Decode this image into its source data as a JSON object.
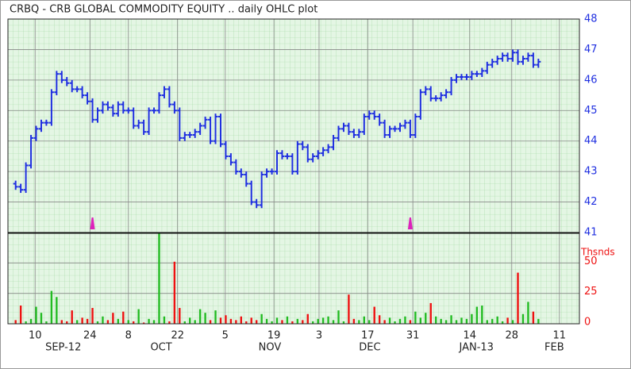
{
  "chart_data": {
    "type": "ohlc",
    "title": "CRBQ - CRB GLOBAL COMMODITY EQUITY .. daily OHLC plot",
    "x": [
      1,
      2,
      3,
      4,
      5,
      6,
      7,
      8,
      9,
      10,
      11,
      12,
      13,
      14,
      15,
      16,
      17,
      18,
      19,
      20,
      21,
      22,
      23,
      24,
      25,
      26,
      27,
      28,
      29,
      30,
      31,
      32,
      33,
      34,
      35,
      36,
      37,
      38,
      39,
      40,
      41,
      42,
      43,
      44,
      45,
      46,
      47,
      48,
      49,
      50,
      51,
      52,
      53,
      54,
      55,
      56,
      57,
      58,
      59,
      60,
      61,
      62,
      63,
      64,
      65,
      66,
      67,
      68,
      69,
      70,
      71,
      72,
      73,
      74,
      75,
      76,
      77,
      78,
      79,
      80,
      81,
      82,
      83,
      84,
      85,
      86,
      87,
      88,
      89,
      90,
      91,
      92,
      93,
      94,
      95,
      96,
      97,
      98,
      99,
      100,
      101,
      102,
      103
    ],
    "open": [
      42.6,
      42.5,
      42.4,
      43.2,
      44.1,
      44.4,
      44.6,
      44.6,
      45.6,
      46.2,
      46.0,
      45.9,
      45.7,
      45.7,
      45.5,
      45.3,
      44.7,
      45.0,
      45.2,
      45.1,
      44.9,
      45.2,
      45.0,
      45.0,
      44.5,
      44.6,
      44.3,
      45.0,
      45.0,
      45.5,
      45.7,
      45.2,
      45.0,
      44.1,
      44.2,
      44.2,
      44.3,
      44.5,
      44.7,
      44.0,
      44.8,
      43.9,
      43.5,
      43.3,
      43.0,
      42.9,
      42.6,
      42.0,
      41.9,
      42.9,
      43.0,
      43.0,
      43.6,
      43.5,
      43.5,
      43.0,
      43.9,
      43.8,
      43.4,
      43.5,
      43.6,
      43.7,
      43.8,
      44.1,
      44.4,
      44.5,
      44.3,
      44.2,
      44.3,
      44.8,
      44.9,
      44.8,
      44.6,
      44.2,
      44.4,
      44.4,
      44.5,
      44.6,
      44.2,
      44.8,
      45.6,
      45.7,
      45.4,
      45.4,
      45.5,
      45.6,
      46.0,
      46.1,
      46.1,
      46.1,
      46.2,
      46.2,
      46.3,
      46.5,
      46.6,
      46.7,
      46.8,
      46.7,
      46.9,
      46.6,
      46.7,
      46.8,
      46.5
    ],
    "high": [
      42.7,
      42.6,
      43.3,
      44.2,
      44.5,
      44.7,
      44.7,
      45.7,
      46.3,
      46.3,
      46.1,
      46.0,
      45.8,
      45.8,
      45.6,
      45.4,
      45.1,
      45.3,
      45.3,
      45.2,
      45.3,
      45.3,
      45.1,
      45.1,
      44.7,
      44.7,
      45.1,
      45.1,
      45.6,
      45.8,
      45.8,
      45.3,
      45.1,
      44.3,
      44.3,
      44.4,
      44.6,
      44.8,
      44.8,
      44.9,
      44.9,
      44.0,
      43.6,
      43.4,
      43.1,
      43.0,
      42.7,
      42.1,
      43.0,
      43.1,
      43.1,
      43.7,
      43.7,
      43.6,
      43.6,
      44.0,
      44.0,
      43.9,
      43.6,
      43.7,
      43.8,
      43.9,
      44.2,
      44.5,
      44.6,
      44.6,
      44.4,
      44.4,
      44.9,
      45.0,
      45.0,
      44.9,
      44.7,
      44.5,
      44.5,
      44.6,
      44.7,
      44.7,
      44.9,
      45.7,
      45.8,
      45.8,
      45.5,
      45.6,
      45.7,
      46.1,
      46.2,
      46.2,
      46.2,
      46.3,
      46.3,
      46.4,
      46.6,
      46.7,
      46.8,
      46.9,
      46.9,
      47.0,
      47.0,
      46.8,
      46.9,
      46.9,
      46.7
    ],
    "low": [
      42.4,
      42.3,
      42.3,
      43.1,
      44.0,
      44.3,
      44.5,
      44.5,
      45.5,
      45.9,
      45.8,
      45.6,
      45.6,
      45.4,
      45.2,
      44.6,
      44.6,
      44.9,
      45.0,
      44.8,
      44.8,
      44.9,
      44.9,
      44.4,
      44.4,
      44.2,
      44.2,
      44.9,
      44.9,
      45.4,
      45.1,
      44.9,
      44.0,
      44.0,
      44.1,
      44.1,
      44.2,
      44.4,
      43.9,
      43.9,
      43.8,
      43.4,
      43.2,
      42.9,
      42.8,
      42.5,
      41.9,
      41.8,
      41.8,
      42.8,
      42.9,
      42.9,
      43.4,
      43.4,
      42.9,
      42.9,
      43.7,
      43.3,
      43.3,
      43.4,
      43.5,
      43.6,
      43.7,
      44.0,
      44.3,
      44.2,
      44.1,
      44.1,
      44.2,
      44.7,
      44.7,
      44.5,
      44.1,
      44.1,
      44.3,
      44.3,
      44.4,
      44.1,
      44.1,
      44.7,
      45.5,
      45.3,
      45.3,
      45.3,
      45.4,
      45.5,
      45.9,
      46.0,
      46.0,
      46.0,
      46.1,
      46.1,
      46.2,
      46.4,
      46.5,
      46.6,
      46.6,
      46.6,
      46.5,
      46.5,
      46.6,
      46.4,
      46.4
    ],
    "close": [
      42.5,
      42.4,
      43.2,
      44.1,
      44.4,
      44.6,
      44.6,
      45.6,
      46.2,
      46.0,
      45.9,
      45.7,
      45.7,
      45.5,
      45.3,
      44.7,
      45.0,
      45.2,
      45.1,
      44.9,
      45.2,
      45.0,
      45.0,
      44.5,
      44.6,
      44.3,
      45.0,
      45.0,
      45.5,
      45.7,
      45.2,
      45.0,
      44.1,
      44.2,
      44.2,
      44.3,
      44.5,
      44.7,
      44.0,
      44.8,
      43.9,
      43.5,
      43.3,
      43.0,
      42.9,
      42.6,
      42.0,
      41.9,
      42.9,
      43.0,
      43.0,
      43.6,
      43.5,
      43.5,
      43.0,
      43.9,
      43.8,
      43.4,
      43.5,
      43.6,
      43.7,
      43.8,
      44.1,
      44.4,
      44.5,
      44.3,
      44.2,
      44.3,
      44.8,
      44.9,
      44.8,
      44.6,
      44.2,
      44.4,
      44.4,
      44.5,
      44.6,
      44.2,
      44.8,
      45.6,
      45.7,
      45.4,
      45.4,
      45.5,
      45.6,
      46.0,
      46.1,
      46.1,
      46.1,
      46.2,
      46.2,
      46.3,
      46.5,
      46.6,
      46.7,
      46.8,
      46.7,
      46.9,
      46.6,
      46.7,
      46.8,
      46.5,
      46.6
    ],
    "volume": [
      3,
      15,
      2,
      4,
      14,
      9,
      2,
      27,
      22,
      3,
      2,
      11,
      3,
      5,
      4,
      13,
      2,
      6,
      3,
      9,
      4,
      10,
      3,
      2,
      12,
      1,
      4,
      3,
      75,
      6,
      2,
      51,
      13,
      2,
      5,
      3,
      12,
      9,
      3,
      11,
      5,
      7,
      4,
      3,
      6,
      2,
      5,
      3,
      8,
      4,
      2,
      5,
      3,
      6,
      2,
      4,
      3,
      8,
      2,
      4,
      5,
      6,
      3,
      11,
      2,
      24,
      4,
      3,
      6,
      3,
      14,
      7,
      3,
      5,
      2,
      4,
      6,
      3,
      10,
      5,
      9,
      17,
      6,
      4,
      3,
      7,
      3,
      5,
      4,
      8,
      14,
      15,
      3,
      4,
      6,
      2,
      5,
      3,
      42,
      8,
      18,
      10,
      4
    ],
    "color": "#1f2fe0",
    "up_color": "#22bb22",
    "down_color": "#ee1111",
    "marker_color": "#dd22bb",
    "event_markers": [
      16,
      78
    ],
    "xlim": [
      -0.5,
      111
    ],
    "xticks": [
      {
        "value": 4.8,
        "label": "10"
      },
      {
        "value": 15.5,
        "label": "24"
      },
      {
        "value": 23.0,
        "label": "8"
      },
      {
        "value": 32.6,
        "label": "22"
      },
      {
        "value": 41.9,
        "label": "5"
      },
      {
        "value": 51.4,
        "label": "19"
      },
      {
        "value": 60.2,
        "label": "3"
      },
      {
        "value": 69.7,
        "label": "17"
      },
      {
        "value": 78.5,
        "label": "31"
      },
      {
        "value": 89.6,
        "label": "14"
      },
      {
        "value": 97.8,
        "label": "28"
      },
      {
        "value": 107.1,
        "label": "11"
      }
    ],
    "month_ticks": [
      {
        "value": 10.3,
        "label": "SEP-12"
      },
      {
        "value": 29.4,
        "label": "OCT"
      },
      {
        "value": 50.6,
        "label": "NOV"
      },
      {
        "value": 70.1,
        "label": "DEC"
      },
      {
        "value": 90.9,
        "label": "JAN-13"
      },
      {
        "value": 106.1,
        "label": "FEB"
      }
    ],
    "ylim": [
      41,
      48
    ],
    "yticks": [
      41,
      42,
      43,
      44,
      45,
      46,
      47,
      48
    ],
    "volume_label": "Thsnds",
    "volume_ylim": [
      0,
      75
    ],
    "volume_yticks": [
      0,
      25,
      50
    ],
    "grid": true
  }
}
